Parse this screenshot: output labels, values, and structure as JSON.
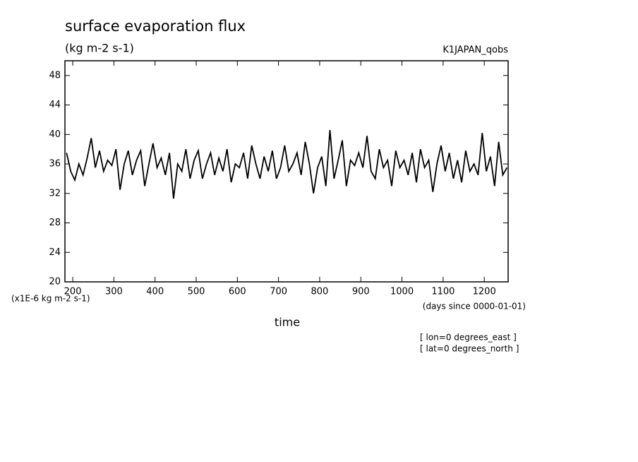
{
  "chart_data": {
    "type": "line",
    "title": "surface evaporation flux",
    "subtitle": "(kg m-2 s-1)",
    "dataset_label": "K1JAPAN_qobs",
    "y_unit_label": "(x1E-6 kg m-2 s-1)",
    "x_unit_label": "(days since 0000-01-01)",
    "x_label": "time",
    "annotations": [
      "[ lon=0 degrees_east ]",
      "[ lat=0 degrees_north ]"
    ],
    "x": [
      185,
      195,
      205,
      215,
      225,
      235,
      245,
      255,
      265,
      275,
      285,
      295,
      305,
      315,
      325,
      335,
      345,
      355,
      365,
      375,
      385,
      395,
      405,
      415,
      425,
      435,
      445,
      455,
      465,
      475,
      485,
      495,
      505,
      515,
      525,
      535,
      545,
      555,
      565,
      575,
      585,
      595,
      605,
      615,
      625,
      635,
      645,
      655,
      665,
      675,
      685,
      695,
      705,
      715,
      725,
      735,
      745,
      755,
      765,
      775,
      785,
      795,
      805,
      815,
      825,
      835,
      845,
      855,
      865,
      875,
      885,
      895,
      905,
      915,
      925,
      935,
      945,
      955,
      965,
      975,
      985,
      995,
      1005,
      1015,
      1025,
      1035,
      1045,
      1055,
      1065,
      1075,
      1085,
      1095,
      1105,
      1115,
      1125,
      1135,
      1145,
      1155,
      1165,
      1175,
      1185,
      1195,
      1205,
      1215,
      1225,
      1235,
      1245,
      1255
    ],
    "values": [
      37.5,
      35,
      33.8,
      36,
      34.5,
      36.8,
      39.5,
      35.5,
      37.8,
      35,
      36.5,
      35.8,
      38,
      32.5,
      36,
      37.8,
      34.5,
      36.5,
      37.8,
      33,
      36,
      38.8,
      35.5,
      36.8,
      34.5,
      37.5,
      31.3,
      36,
      35,
      38,
      34,
      36.5,
      37.8,
      34,
      36,
      37.5,
      34.5,
      36.8,
      35,
      38,
      33.5,
      36,
      35.5,
      37.5,
      34,
      38.5,
      36,
      34,
      37,
      35,
      37.8,
      34,
      35.5,
      38.5,
      35,
      36,
      37.5,
      34.5,
      39,
      36,
      32,
      35.5,
      37,
      33,
      40.6,
      34,
      36.5,
      39.2,
      33,
      36.5,
      35.8,
      37.5,
      35.5,
      39.8,
      35,
      34,
      38,
      35.5,
      36.5,
      33,
      37.8,
      35.5,
      36.5,
      34.5,
      37.5,
      33.5,
      38,
      35.5,
      36.5,
      32.2,
      36,
      38.5,
      35,
      37.5,
      34,
      36.5,
      33.5,
      37.8,
      35,
      36,
      34.5,
      40.2,
      35,
      37,
      33,
      39,
      34.5,
      35.5
    ],
    "color": "#000000",
    "xlim": [
      181,
      1258
    ],
    "ylim": [
      20,
      50
    ],
    "xticks": [
      200,
      300,
      400,
      500,
      600,
      700,
      800,
      900,
      1000,
      1100,
      1200
    ],
    "yticks": [
      20,
      24,
      28,
      32,
      36,
      40,
      44,
      48
    ]
  }
}
